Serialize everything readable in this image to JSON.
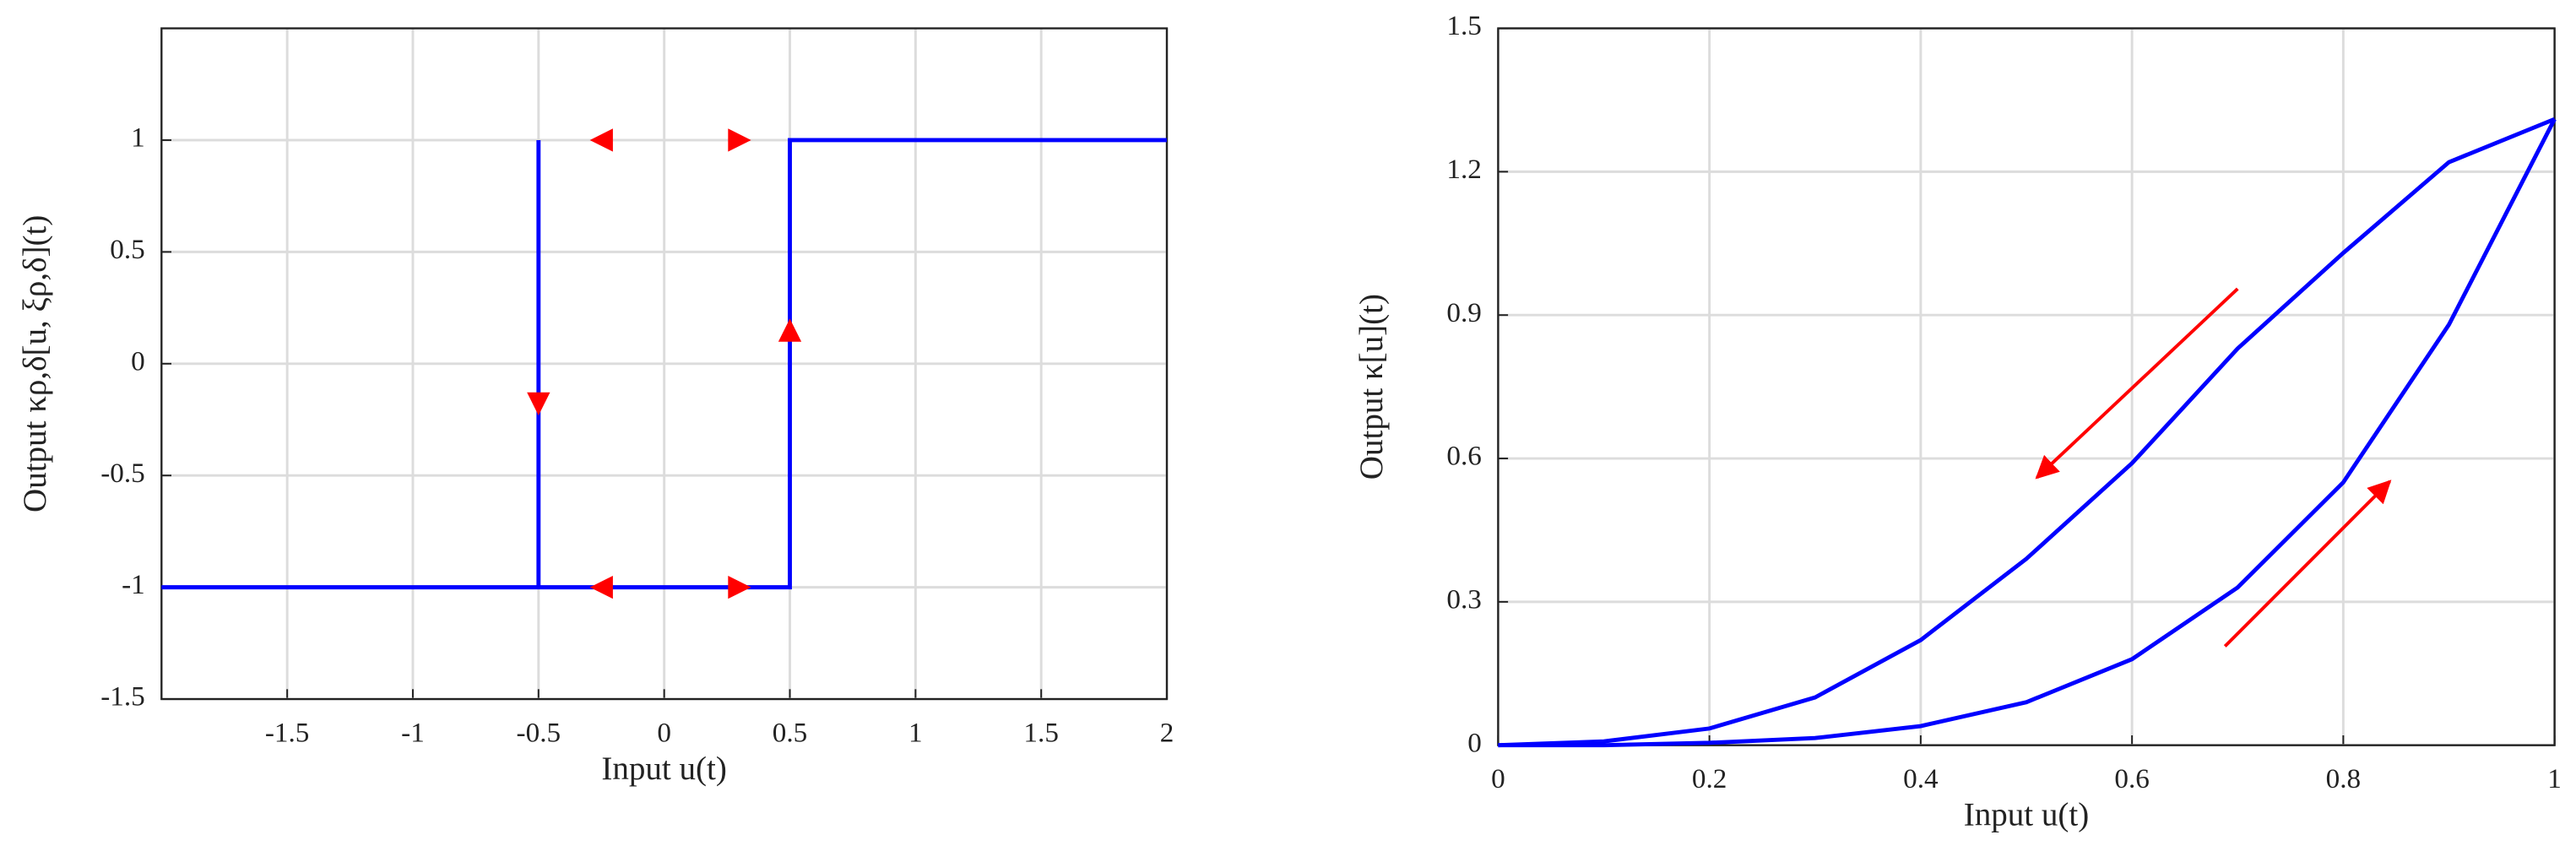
{
  "chart_data": [
    {
      "type": "line",
      "xlabel": "Input u(t)",
      "ylabel": "Output κρ,δ[u, ξρ,δ](t)",
      "xlim": [
        -2,
        2
      ],
      "ylim": [
        -1.5,
        1.5
      ],
      "xticks": [
        -1.5,
        -1,
        -0.5,
        0,
        0.5,
        1,
        1.5,
        2
      ],
      "yticks": [
        -1.5,
        -1,
        -0.5,
        0,
        0.5,
        1
      ],
      "grid": true,
      "series": [
        {
          "color": "#0000ff",
          "x": [
            -2,
            0.5,
            0.5,
            2,
            null,
            -0.5,
            -0.5
          ],
          "values": [
            -1,
            -1,
            1,
            1,
            null,
            1,
            -1
          ]
        }
      ],
      "arrows": [
        {
          "x": -0.25,
          "y": 1,
          "direction": "left",
          "color": "#ff0000"
        },
        {
          "x": 0.3,
          "y": 1,
          "direction": "right",
          "color": "#ff0000"
        },
        {
          "x": -0.25,
          "y": -1,
          "direction": "left",
          "color": "#ff0000"
        },
        {
          "x": 0.3,
          "y": -1,
          "direction": "right",
          "color": "#ff0000"
        },
        {
          "x": -0.5,
          "y": -0.18,
          "direction": "down",
          "color": "#ff0000"
        },
        {
          "x": 0.5,
          "y": 0.15,
          "direction": "up",
          "color": "#ff0000"
        }
      ]
    },
    {
      "type": "line",
      "xlabel": "Input u(t)",
      "ylabel": "Output κ[u](t)",
      "xlim": [
        0,
        1
      ],
      "ylim": [
        0,
        1.5
      ],
      "xticks": [
        0,
        0.2,
        0.4,
        0.6,
        0.8,
        1
      ],
      "yticks": [
        0,
        0.3,
        0.6,
        0.9,
        1.2,
        1.5
      ],
      "grid": true,
      "x": [
        0,
        0.1,
        0.2,
        0.3,
        0.4,
        0.5,
        0.6,
        0.7,
        0.8,
        0.9,
        1
      ],
      "series": [
        {
          "color": "#0000ff",
          "values": [
            0,
            0,
            0.005,
            0.015,
            0.04,
            0.09,
            0.18,
            0.33,
            0.55,
            0.88,
            1.31
          ]
        },
        {
          "color": "#0000ff",
          "values": [
            0,
            0.008,
            0.035,
            0.1,
            0.22,
            0.39,
            0.59,
            0.83,
            1.03,
            1.22,
            1.31
          ]
        }
      ],
      "arrows": [
        {
          "from": [
            0.7,
            0.955
          ],
          "to": [
            0.51,
            0.56
          ],
          "color": "#ff0000"
        },
        {
          "from": [
            0.688,
            0.207
          ],
          "to": [
            0.844,
            0.552
          ],
          "color": "#ff0000"
        }
      ]
    }
  ]
}
